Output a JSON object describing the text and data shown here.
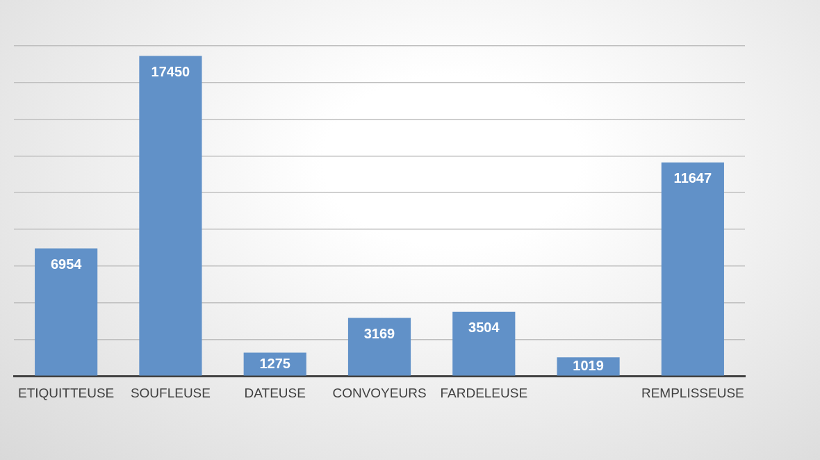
{
  "chart_data": {
    "type": "bar",
    "categories": [
      "ETIQUITTEUSE",
      "SOUFLEUSE",
      "DATEUSE",
      "CONVOYEURS",
      "FARDELEUSE",
      null,
      "REMPLISSEUSE"
    ],
    "values": [
      6954,
      17450,
      1275,
      3169,
      3504,
      1019,
      11647
    ],
    "color": "#6191c8",
    "grid": "y",
    "tick_labels": "x",
    "data_labels": true
  }
}
